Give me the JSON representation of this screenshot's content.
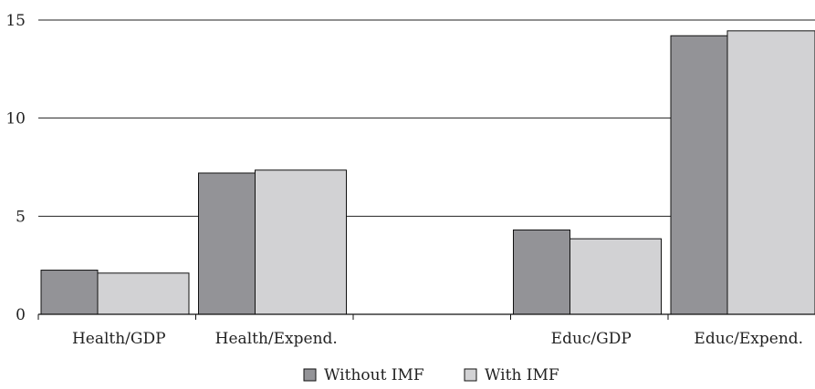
{
  "chart_data": {
    "type": "bar",
    "categories": [
      "Health/GDP",
      "Health/Expend.",
      "",
      "Educ/GDP",
      "Educ/Expend."
    ],
    "series": [
      {
        "name": "Without IMF",
        "values": [
          2.25,
          7.2,
          null,
          4.3,
          14.2
        ],
        "color": "#939397"
      },
      {
        "name": "With IMF",
        "values": [
          2.1,
          7.35,
          null,
          3.85,
          14.45
        ],
        "color": "#d2d2d4"
      }
    ],
    "yticks": [
      0,
      5,
      10,
      15
    ],
    "ylim": [
      0,
      15
    ],
    "grid": true,
    "legend_position": "bottom-center",
    "title": "",
    "xlabel": "",
    "ylabel": ""
  }
}
